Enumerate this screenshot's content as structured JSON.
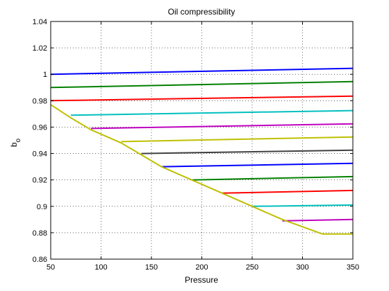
{
  "chart_data": {
    "type": "line",
    "title": "Oil compressibility",
    "xlabel": "Pressure",
    "ylabel": "b",
    "ylabel_subscript": "o",
    "xlim": [
      50,
      350
    ],
    "ylim": [
      0.86,
      1.04
    ],
    "xticks": [
      "50",
      "100",
      "150",
      "200",
      "250",
      "300",
      "350"
    ],
    "yticks": [
      "0.86",
      "0.88",
      "0.9",
      "0.92",
      "0.94",
      "0.96",
      "0.98",
      "1",
      "1.02",
      "1.04"
    ],
    "grid": true,
    "series": [
      {
        "color": "#0000ff",
        "x": [
          50,
          350
        ],
        "y": [
          1.0,
          1.0045
        ]
      },
      {
        "color": "#008000",
        "x": [
          50,
          350
        ],
        "y": [
          0.99,
          0.9945
        ]
      },
      {
        "color": "#ff0000",
        "x": [
          50,
          350
        ],
        "y": [
          0.98,
          0.9835
        ]
      },
      {
        "color": "#00bfbf",
        "x": [
          70,
          350
        ],
        "y": [
          0.969,
          0.9725
        ]
      },
      {
        "color": "#bf00bf",
        "x": [
          90,
          350
        ],
        "y": [
          0.959,
          0.9625
        ]
      },
      {
        "color": "#bfbf00",
        "x": [
          120,
          350
        ],
        "y": [
          0.949,
          0.9525
        ]
      },
      {
        "color": "#404040",
        "x": [
          140,
          350
        ],
        "y": [
          0.94,
          0.9425
        ]
      },
      {
        "color": "#0000ff",
        "x": [
          160,
          350
        ],
        "y": [
          0.93,
          0.9325
        ]
      },
      {
        "color": "#008000",
        "x": [
          190,
          350
        ],
        "y": [
          0.92,
          0.9225
        ]
      },
      {
        "color": "#ff0000",
        "x": [
          220,
          350
        ],
        "y": [
          0.91,
          0.912
        ]
      },
      {
        "color": "#00bfbf",
        "x": [
          250,
          350
        ],
        "y": [
          0.9,
          0.901
        ]
      },
      {
        "color": "#bf00bf",
        "x": [
          280,
          350
        ],
        "y": [
          0.889,
          0.89
        ]
      },
      {
        "color": "#bfbf00",
        "x": [
          50,
          70,
          90,
          120,
          140,
          160,
          190,
          220,
          250,
          280,
          320,
          350
        ],
        "y": [
          0.977,
          0.967,
          0.958,
          0.948,
          0.939,
          0.93,
          0.92,
          0.91,
          0.9,
          0.89,
          0.879,
          0.879
        ]
      }
    ]
  }
}
